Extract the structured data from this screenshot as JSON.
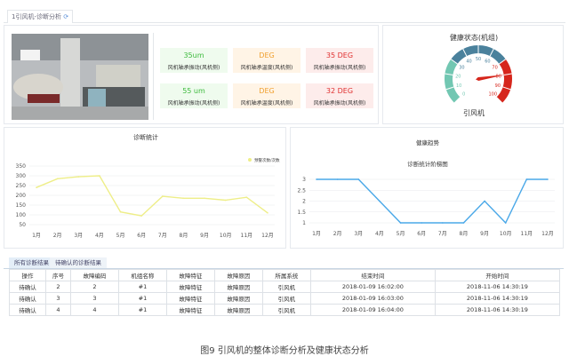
{
  "tab": {
    "label": "1引风机-诊断分析",
    "close_icon": "refresh-close-icon"
  },
  "cards": [
    {
      "value": "35um",
      "label": "风机轴承振动(风机侧)",
      "tone": "green"
    },
    {
      "value": "DEG",
      "label": "风机轴承温度(风机侧)",
      "tone": "orange"
    },
    {
      "value": "35 DEG",
      "label": "风机轴承振动(风机侧)",
      "tone": "red"
    },
    {
      "value": "55 um",
      "label": "风机轴承振动(风机侧)",
      "tone": "green"
    },
    {
      "value": "DEG",
      "label": "风机轴承温度(风机侧)",
      "tone": "orange"
    },
    {
      "value": "32 DEG",
      "label": "风机轴承振动(风机侧)",
      "tone": "red"
    }
  ],
  "gauge": {
    "title": "健康状态(机组)",
    "name": "引风机",
    "value": 80,
    "min": 0,
    "max": 100,
    "ticks": [
      "0",
      "10",
      "20",
      "30",
      "40",
      "50",
      "60",
      "70",
      "80",
      "90",
      "100"
    ],
    "colors": {
      "low": "#72c7b2",
      "mid": "#4a819c",
      "high": "#d6261c"
    }
  },
  "chart_data": [
    {
      "type": "line",
      "title": "诊断统计",
      "legend": "预警次数/次数",
      "legend_position": "top-right",
      "color": "#eeee88",
      "categories": [
        "1月",
        "2月",
        "3月",
        "4月",
        "5月",
        "6月",
        "7月",
        "8月",
        "9月",
        "10月",
        "11月",
        "12月"
      ],
      "values": [
        240,
        285,
        295,
        300,
        115,
        95,
        195,
        185,
        185,
        175,
        190,
        110
      ],
      "yticks": [
        "50",
        "100",
        "150",
        "200",
        "250",
        "300",
        "350"
      ],
      "ylim": [
        50,
        350
      ],
      "grid": true
    },
    {
      "type": "line",
      "title": "健康趋势",
      "subtitle": "诊断统计阶梯图",
      "color": "#4aa8e8",
      "categories": [
        "1月",
        "2月",
        "3月",
        "4月",
        "5月",
        "6月",
        "7月",
        "8月",
        "9月",
        "10月",
        "11月",
        "12月"
      ],
      "values": [
        3,
        3,
        3,
        2,
        1,
        1,
        1,
        1,
        2,
        1,
        3,
        3
      ],
      "yticks": [
        "1",
        "1.5",
        "2",
        "2.5",
        "3"
      ],
      "ylim": [
        1,
        3
      ],
      "grid": true
    }
  ],
  "table": {
    "tabs": [
      "所有诊断结果",
      "待确认的诊断结果"
    ],
    "headers": [
      "操作",
      "序号",
      "故障编码",
      "机组名称",
      "故障特征",
      "故障原因",
      "所属系统",
      "结束时间",
      "开始时间"
    ],
    "rows": [
      [
        "待确认",
        "2",
        "2",
        "#1",
        "故障特征",
        "故障原因",
        "引风机",
        "2018-01-09 16:02:00",
        "2018-11-06 14:30:19"
      ],
      [
        "待确认",
        "3",
        "3",
        "#1",
        "故障特征",
        "故障原因",
        "引风机",
        "2018-01-09 16:03:00",
        "2018-11-06 14:30:19"
      ],
      [
        "待确认",
        "4",
        "4",
        "#1",
        "故障特征",
        "故障原因",
        "引风机",
        "2018-01-09 16:04:00",
        "2018-11-06 14:30:19"
      ]
    ]
  },
  "caption": "图9 引风机的整体诊断分析及健康状态分析"
}
